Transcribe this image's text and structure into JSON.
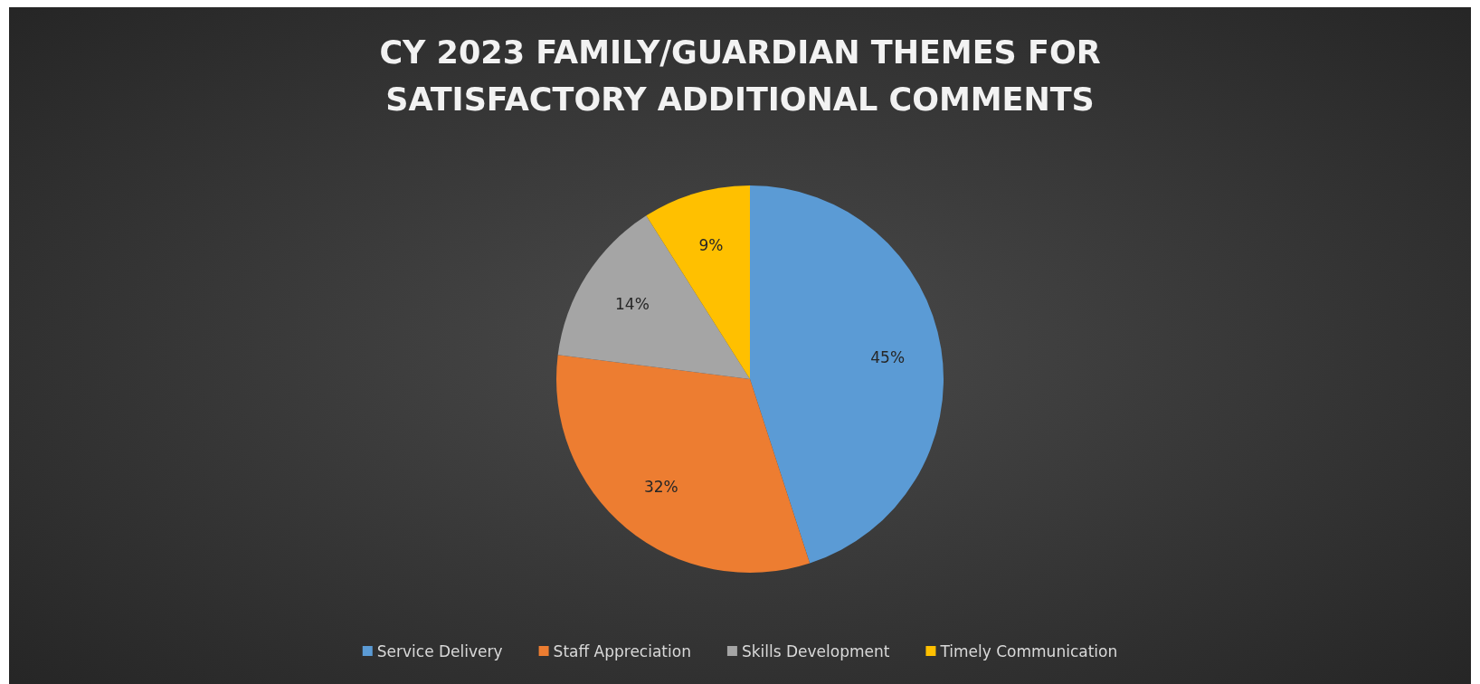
{
  "chart_data": {
    "type": "pie",
    "title": "CY 2023 FAMILY/GUARDIAN THEMES FOR SATISFACTORY ADDITIONAL COMMENTS",
    "categories": [
      "Service Delivery",
      "Staff Appreciation",
      "Skills Development",
      "Timely Communication"
    ],
    "values": [
      45,
      32,
      14,
      9
    ],
    "value_labels": [
      "45%",
      "32%",
      "14%",
      "9%"
    ],
    "colors": [
      "#5b9bd5",
      "#ed7d31",
      "#a5a5a5",
      "#ffc000"
    ],
    "legend": "bottom"
  }
}
